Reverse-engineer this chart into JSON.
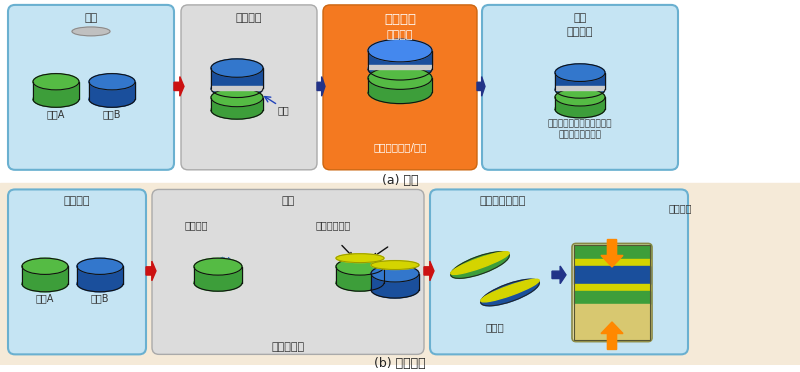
{
  "fig_w": 8.0,
  "fig_h": 3.72,
  "dpi": 100,
  "bg_top_color": "#ffffff",
  "bg_bottom_color": "#f5ecd0",
  "box_lb": "#c5e4f3",
  "box_gray": "#dcdcdc",
  "box_orange": "#f47920",
  "green1": "#3d9e3a",
  "green2": "#55bb44",
  "blue1": "#1a4f9c",
  "blue2": "#3377cc",
  "silver": "#b0b0b0",
  "yellow": "#d4d400",
  "yellow2": "#e0e000",
  "red_arrow": "#cc1111",
  "blue_arrow": "#2244bb",
  "orange_arrow": "#ff8800",
  "dark_blue_arrow": "#223388",
  "text_dark": "#333333",
  "text_white": "#ffffff",
  "panel1_title": "钒材",
  "panel1_mat_a": "材料A",
  "panel1_mat_b": "材料B",
  "panel2_title": "确定位置",
  "panel2_label": "钒材",
  "panel3_title": "加热粘合",
  "panel3_sub": "材料膨胀",
  "panel3_bottom": "钒焊金属溶化/连接",
  "panel4_title": "冷却",
  "panel4_sub": "材料减少",
  "panel4_desc1": "由于线性膨胀系数的差异，",
  "panel4_desc2": "材料中残留有应力",
  "title_a": "(a) 钒焊",
  "panel5_title": "抛光表面",
  "panel5_mat_a": "材料A",
  "panel5_mat_b": "材料B",
  "panel6_title": "溅射",
  "panel6_metal": "金属原子",
  "panel6_film": "溅射金属薄膜",
  "panel6_vacuum": "真空室内部",
  "panel7_title": "确定位置･附着",
  "panel7_reduce": "减轻压力",
  "panel7_air": "在空中",
  "title_b": "(b) 常温接合"
}
